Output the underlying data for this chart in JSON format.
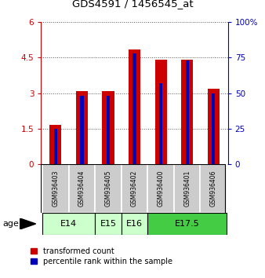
{
  "title": "GDS4591 / 1456545_at",
  "samples": [
    "GSM936403",
    "GSM936404",
    "GSM936405",
    "GSM936402",
    "GSM936400",
    "GSM936401",
    "GSM936406"
  ],
  "transformed_count": [
    1.65,
    3.1,
    3.08,
    4.85,
    4.42,
    4.42,
    3.18
  ],
  "percentile_rank": [
    25,
    48,
    48,
    78,
    57,
    73,
    50
  ],
  "ylim_left": [
    0,
    6
  ],
  "yticks_left": [
    0,
    1.5,
    3.0,
    4.5,
    6
  ],
  "ytick_labels_left": [
    "0",
    "1.5",
    "3",
    "4.5",
    "6"
  ],
  "ylim_right": [
    0,
    100
  ],
  "yticks_right": [
    0,
    25,
    50,
    75,
    100
  ],
  "ytick_labels_right": [
    "0",
    "25",
    "50",
    "75",
    "100%"
  ],
  "bar_color_red": "#cc0000",
  "bar_color_blue": "#0000bb",
  "groups": [
    {
      "label": "E14",
      "start": 0,
      "end": 2,
      "color": "#ccffcc"
    },
    {
      "label": "E15",
      "start": 2,
      "end": 3,
      "color": "#ccffcc"
    },
    {
      "label": "E16",
      "start": 3,
      "end": 4,
      "color": "#ccffcc"
    },
    {
      "label": "E17.5",
      "start": 4,
      "end": 7,
      "color": "#44cc44"
    }
  ],
  "xlabel_age": "age",
  "legend_red": "transformed count",
  "legend_blue": "percentile rank within the sample",
  "bar_width": 0.45,
  "sample_box_color": "#cccccc",
  "grid_color": "#555555"
}
